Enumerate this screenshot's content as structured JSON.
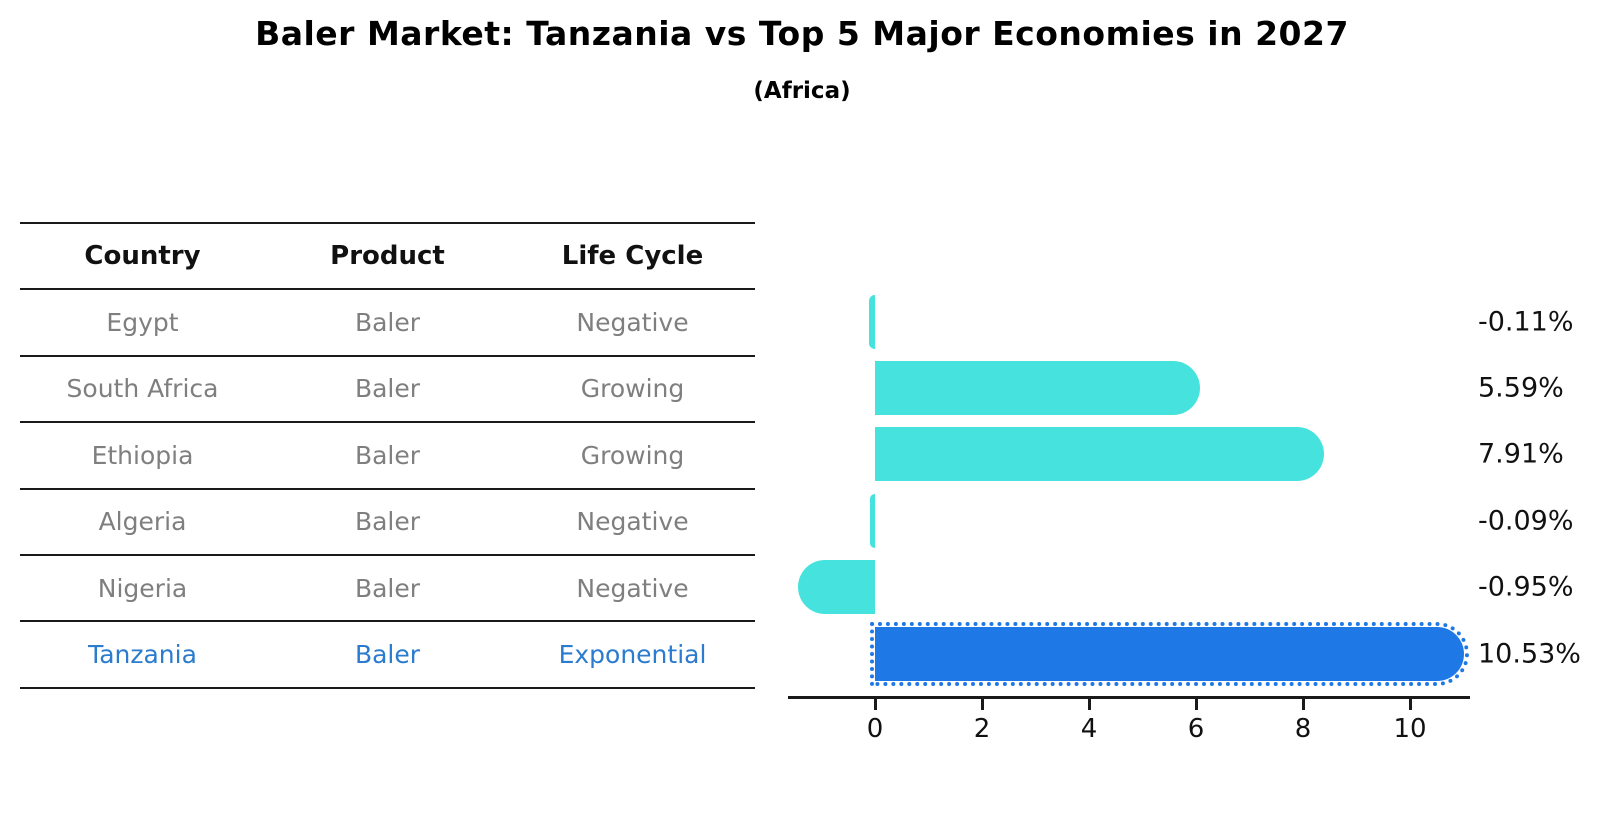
{
  "title": "Baler Market: Tanzania vs Top 5 Major Economies in 2027",
  "subtitle": "(Africa)",
  "table": {
    "columns": [
      "Country",
      "Product",
      "Life Cycle"
    ],
    "rows": [
      {
        "country": "Egypt",
        "product": "Baler",
        "life_cycle": "Negative",
        "highlight": false
      },
      {
        "country": "South Africa",
        "product": "Baler",
        "life_cycle": "Growing",
        "highlight": false
      },
      {
        "country": "Ethiopia",
        "product": "Baler",
        "life_cycle": "Growing",
        "highlight": false
      },
      {
        "country": "Algeria",
        "product": "Baler",
        "life_cycle": "Negative",
        "highlight": false
      },
      {
        "country": "Nigeria",
        "product": "Baler",
        "life_cycle": "Negative",
        "highlight": false
      },
      {
        "country": "Tanzania",
        "product": "Baler",
        "life_cycle": "Exponential",
        "highlight": true
      }
    ]
  },
  "chart_data": {
    "type": "bar",
    "orientation": "horizontal",
    "title": "Baler Market: Tanzania vs Top 5 Major Economies in 2027",
    "subtitle": "(Africa)",
    "categories": [
      "Egypt",
      "South Africa",
      "Ethiopia",
      "Algeria",
      "Nigeria",
      "Tanzania"
    ],
    "values": [
      -0.11,
      5.59,
      7.91,
      -0.09,
      -0.95,
      10.53
    ],
    "value_labels": [
      "-0.11%",
      "5.59%",
      "7.91%",
      "-0.09%",
      "-0.95%",
      "10.53%"
    ],
    "highlight_index": 5,
    "xticks": [
      "0",
      "2",
      "4",
      "6",
      "8",
      "10"
    ],
    "xtick_values": [
      0,
      2,
      4,
      6,
      8,
      10
    ],
    "xlim": [
      -1.6,
      11.1
    ],
    "unit": "%",
    "grid": false,
    "legend": false
  },
  "colors": {
    "bar_default": "#46E3DE",
    "bar_highlight": "#1E78E6",
    "highlight_text": "#2B7BCE",
    "cell_text": "#7F7F7F",
    "header_text": "#111111",
    "axis": "#1A1A1A",
    "background": "#FFFFFF"
  }
}
